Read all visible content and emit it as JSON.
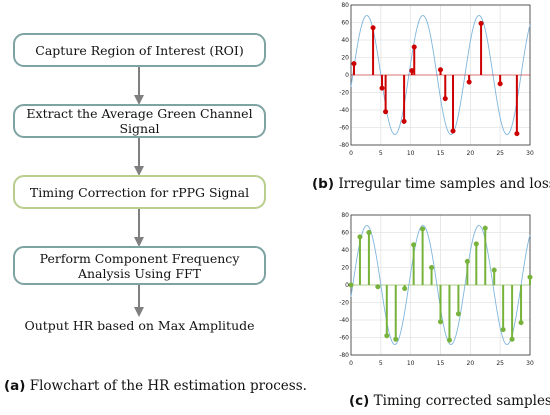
{
  "flowchart": {
    "steps": [
      "Capture Region of Interest (ROI)",
      "Extract the Average Green Channel Signal",
      "Timing Correction for rPPG Signal",
      "Perform Component Frequency Analysis Using FFT"
    ],
    "output": "Output HR based on Max Amplitude",
    "caption_label": "(a)",
    "caption_text": "Flowchart of the HR estimation process.",
    "colors": {
      "box_border": "#7fa3a3",
      "highlight_border": "#b9cd8d",
      "arrow": "#7f7f7f"
    }
  },
  "plots": [
    {
      "caption_label": "(b)",
      "caption_text": "Irregular time samples and loss."
    },
    {
      "caption_label": "(c)",
      "caption_text": "Timing corrected samples."
    }
  ],
  "chart_data": [
    {
      "type": "scatter",
      "title": "",
      "xlabel": "",
      "ylabel": "",
      "xlim": [
        0,
        30
      ],
      "ylim": [
        -80,
        80
      ],
      "xticks": [
        0,
        5,
        10,
        15,
        20,
        25,
        30
      ],
      "yticks": [
        80,
        60,
        40,
        20,
        0,
        -20,
        -40,
        -60,
        -80
      ],
      "grid": true,
      "curve": {
        "amplitude": 68,
        "period": 9.4,
        "phase_x": 0.3,
        "color": "#7fb6dc"
      },
      "marker_color": "#cc0000",
      "style": "stem",
      "samples": [
        {
          "x": 0.5,
          "y": 13
        },
        {
          "x": 3.7,
          "y": 54
        },
        {
          "x": 5.2,
          "y": -15
        },
        {
          "x": 5.8,
          "y": -42
        },
        {
          "x": 8.9,
          "y": -53
        },
        {
          "x": 10.2,
          "y": 5
        },
        {
          "x": 10.6,
          "y": 32
        },
        {
          "x": 15.0,
          "y": 6
        },
        {
          "x": 15.8,
          "y": -27
        },
        {
          "x": 17.1,
          "y": -64
        },
        {
          "x": 19.8,
          "y": -8
        },
        {
          "x": 21.8,
          "y": 59
        },
        {
          "x": 25.0,
          "y": -10
        },
        {
          "x": 27.8,
          "y": -67
        }
      ]
    },
    {
      "type": "scatter",
      "title": "",
      "xlabel": "",
      "ylabel": "",
      "xlim": [
        0,
        30
      ],
      "ylim": [
        -80,
        80
      ],
      "xticks": [
        0,
        5,
        10,
        15,
        20,
        25,
        30
      ],
      "yticks": [
        80,
        60,
        40,
        20,
        0,
        -20,
        -40,
        -60,
        -80
      ],
      "grid": true,
      "curve": {
        "amplitude": 68,
        "period": 9.4,
        "phase_x": 0.3,
        "color": "#7fb6dc"
      },
      "marker_color": "#77b23a",
      "style": "stem",
      "samples": [
        {
          "x": 0,
          "y": 0
        },
        {
          "x": 1.5,
          "y": 55
        },
        {
          "x": 3.0,
          "y": 60
        },
        {
          "x": 4.5,
          "y": -2
        },
        {
          "x": 6.0,
          "y": -58
        },
        {
          "x": 7.5,
          "y": -62
        },
        {
          "x": 9.0,
          "y": -4
        },
        {
          "x": 10.5,
          "y": 46
        },
        {
          "x": 12.0,
          "y": 64
        },
        {
          "x": 13.5,
          "y": 20
        },
        {
          "x": 15.0,
          "y": -42
        },
        {
          "x": 16.5,
          "y": -63
        },
        {
          "x": 18.0,
          "y": -33
        },
        {
          "x": 19.5,
          "y": 27
        },
        {
          "x": 21.0,
          "y": 47
        },
        {
          "x": 22.5,
          "y": 65
        },
        {
          "x": 24.0,
          "y": 17
        },
        {
          "x": 25.5,
          "y": -51
        },
        {
          "x": 27.0,
          "y": -62
        },
        {
          "x": 28.5,
          "y": -43
        },
        {
          "x": 30.0,
          "y": 9
        }
      ]
    }
  ]
}
